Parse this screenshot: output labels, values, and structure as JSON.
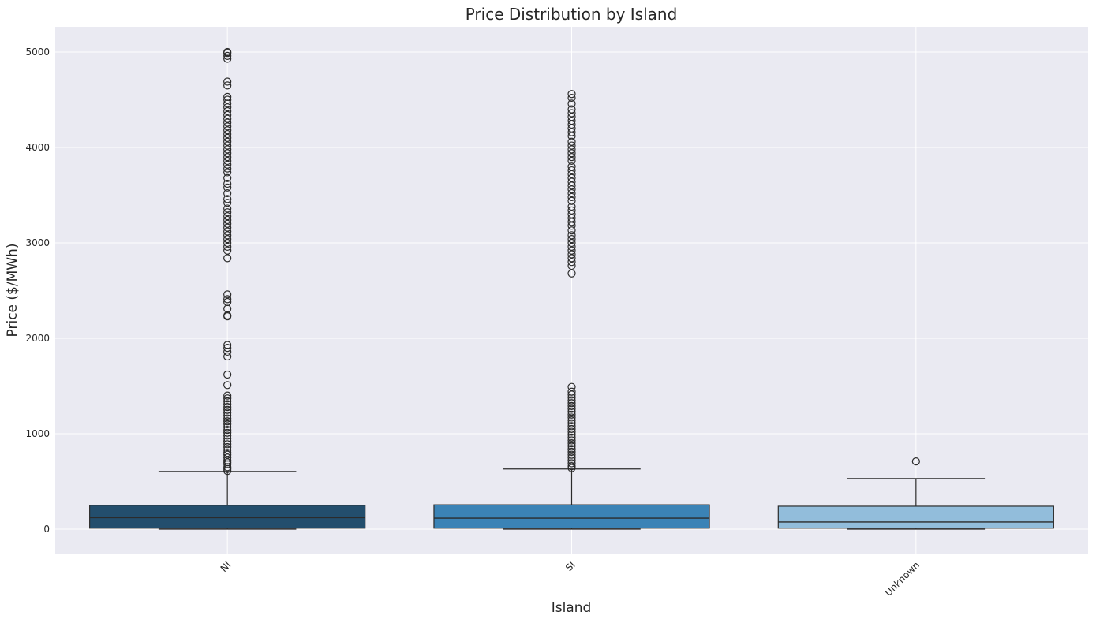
{
  "chart_data": {
    "type": "box",
    "title": "Price Distribution by Island",
    "xlabel": "Island",
    "ylabel": "Price ($/MWh)",
    "ylim": [
      -250,
      5260
    ],
    "yticks": [
      0,
      1000,
      2000,
      3000,
      4000,
      5000
    ],
    "grid": true,
    "categories": [
      "NI",
      "SI",
      "Unknown"
    ],
    "colors": [
      "#234e6d",
      "#3b83b6",
      "#92bddb"
    ],
    "boxes": [
      {
        "category": "NI",
        "min": 0,
        "q1": 10,
        "median": 120,
        "q3": 250,
        "whisker_high": 605,
        "outliers": [
          610,
          630,
          650,
          680,
          700,
          720,
          750,
          780,
          800,
          830,
          860,
          890,
          920,
          950,
          980,
          1010,
          1040,
          1070,
          1100,
          1130,
          1160,
          1190,
          1220,
          1250,
          1280,
          1310,
          1340,
          1370,
          1400,
          1510,
          1620,
          1810,
          1860,
          1900,
          1930,
          2230,
          2240,
          2310,
          2380,
          2410,
          2460,
          2840,
          2920,
          2960,
          3000,
          3040,
          3080,
          3120,
          3160,
          3200,
          3240,
          3280,
          3320,
          3360,
          3420,
          3460,
          3520,
          3580,
          3620,
          3680,
          3740,
          3780,
          3820,
          3860,
          3900,
          3940,
          3980,
          4020,
          4060,
          4100,
          4140,
          4180,
          4220,
          4260,
          4300,
          4340,
          4380,
          4420,
          4460,
          4500,
          4530,
          4650,
          4690,
          4930,
          4960,
          4990,
          5000
        ]
      },
      {
        "category": "SI",
        "min": 0,
        "q1": 10,
        "median": 115,
        "q3": 255,
        "whisker_high": 630,
        "outliers": [
          640,
          660,
          690,
          720,
          750,
          780,
          810,
          840,
          870,
          900,
          930,
          960,
          990,
          1020,
          1050,
          1080,
          1110,
          1140,
          1170,
          1200,
          1230,
          1260,
          1290,
          1320,
          1350,
          1380,
          1410,
          1440,
          1490,
          2680,
          2760,
          2800,
          2840,
          2880,
          2920,
          2960,
          3000,
          3040,
          3080,
          3130,
          3180,
          3220,
          3260,
          3300,
          3340,
          3380,
          3440,
          3480,
          3520,
          3560,
          3600,
          3640,
          3680,
          3720,
          3760,
          3800,
          3860,
          3900,
          3940,
          3980,
          4020,
          4060,
          4120,
          4160,
          4200,
          4240,
          4280,
          4320,
          4360,
          4400,
          4460,
          4520,
          4560
        ]
      },
      {
        "category": "Unknown",
        "min": 0,
        "q1": 10,
        "median": 75,
        "q3": 240,
        "whisker_high": 530,
        "outliers": [
          710
        ]
      }
    ]
  }
}
